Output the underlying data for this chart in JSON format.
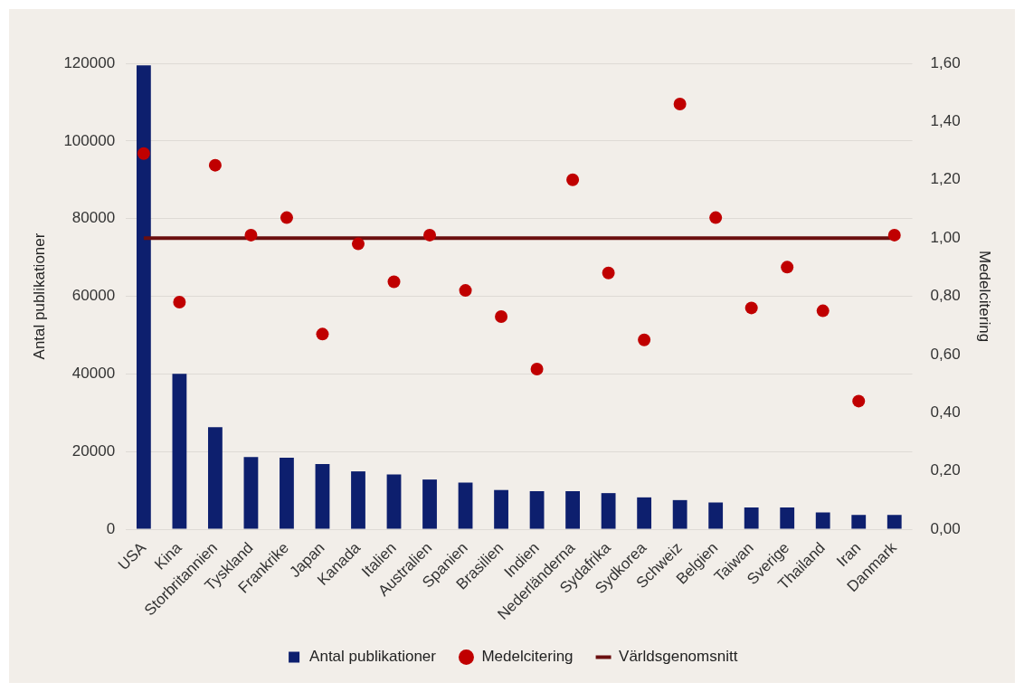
{
  "chart_data": {
    "type": "bar",
    "categories": [
      "USA",
      "Kina",
      "Storbritannien",
      "Tyskland",
      "Frankrike",
      "Japan",
      "Kanada",
      "Italien",
      "Australien",
      "Spanien",
      "Brasilien",
      "Indien",
      "Nederländerna",
      "Sydafrika",
      "Sydkorea",
      "Schweiz",
      "Belgien",
      "Taiwan",
      "Sverige",
      "Thailand",
      "Iran",
      "Danmark"
    ],
    "ylabel": "Antal publikationer",
    "y2label": "Medelcitering",
    "series": [
      {
        "name": "Antal publikationer",
        "color": "#0d1f6e",
        "values": [
          119500,
          40000,
          26300,
          18600,
          18400,
          16800,
          14900,
          14100,
          12800,
          12000,
          10100,
          9800,
          9800,
          9300,
          8200,
          7500,
          6900,
          5600,
          5600,
          4300,
          3700,
          3700
        ]
      },
      {
        "name": "Medelcitering",
        "type": "scatter",
        "axis": "y2",
        "marker": "circle",
        "color": "#c00000",
        "values": [
          1.29,
          0.78,
          1.25,
          1.01,
          1.07,
          0.67,
          0.98,
          0.85,
          1.01,
          0.82,
          0.73,
          0.55,
          1.2,
          0.88,
          0.65,
          1.46,
          1.07,
          0.76,
          0.9,
          0.75,
          0.44,
          1.01
        ]
      },
      {
        "name": "Världsgenomsnitt",
        "type": "line",
        "axis": "y2",
        "marker": "none",
        "line_style": "solid",
        "color": "#6b0f0f",
        "values": [
          1,
          1,
          1,
          1,
          1,
          1,
          1,
          1,
          1,
          1,
          1,
          1,
          1,
          1,
          1,
          1,
          1,
          1,
          1,
          1,
          1,
          1
        ]
      }
    ],
    "ylim": [
      0,
      120000
    ],
    "yticks": [
      0,
      20000,
      40000,
      60000,
      80000,
      100000,
      120000
    ],
    "y2lim": [
      0,
      1.6
    ],
    "y2ticks": [
      {
        "value": 0,
        "label": "0,00"
      },
      {
        "value": 0.2,
        "label": "0,20"
      },
      {
        "value": 0.4,
        "label": "0,40"
      },
      {
        "value": 0.6,
        "label": "0,60"
      },
      {
        "value": 0.8,
        "label": "0,80"
      },
      {
        "value": 1,
        "label": "1,00"
      },
      {
        "value": 1.2,
        "label": "1,20"
      },
      {
        "value": 1.4,
        "label": "1,40"
      },
      {
        "value": 1.6,
        "label": "1,60"
      }
    ],
    "grid": "y",
    "legend": "bottom"
  }
}
